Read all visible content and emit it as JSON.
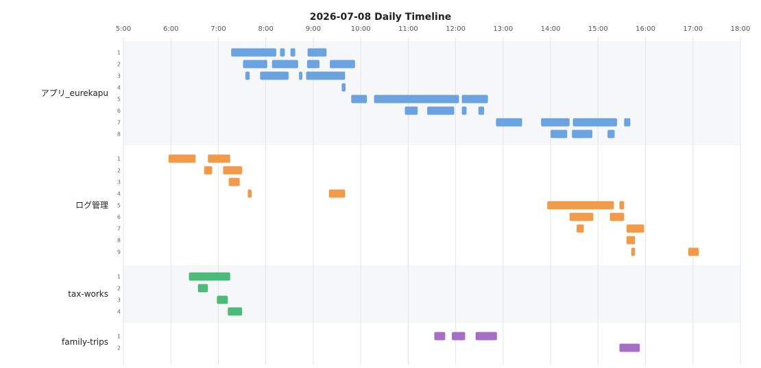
{
  "chart_data": {
    "type": "timeline",
    "title": "2026-07-08 Daily Timeline",
    "x_ticks": [
      "5:00",
      "6:00",
      "7:00",
      "8:00",
      "9:00",
      "10:00",
      "11:00",
      "12:00",
      "13:00",
      "14:00",
      "15:00",
      "16:00",
      "17:00",
      "18:00"
    ],
    "xlim": [
      5,
      18
    ],
    "groups": [
      {
        "name": "アプリ_eurekapu",
        "color": "#6aa3e0",
        "shaded": true,
        "lanes": [
          {
            "label": "1",
            "bars": [
              [
                7.27,
                8.22
              ],
              [
                8.3,
                8.4
              ],
              [
                8.52,
                8.62
              ],
              [
                8.88,
                9.28
              ]
            ]
          },
          {
            "label": "2",
            "bars": [
              [
                7.52,
                8.03
              ],
              [
                8.13,
                8.68
              ],
              [
                8.87,
                9.13
              ],
              [
                9.35,
                9.88
              ]
            ]
          },
          {
            "label": "3",
            "bars": [
              [
                7.57,
                7.66
              ],
              [
                7.88,
                8.48
              ],
              [
                8.7,
                8.77
              ],
              [
                8.85,
                9.67
              ]
            ]
          },
          {
            "label": "4",
            "bars": [
              [
                9.6,
                9.68
              ]
            ]
          },
          {
            "label": "5",
            "bars": [
              [
                9.8,
                10.13
              ],
              [
                10.28,
                12.07
              ],
              [
                12.13,
                12.68
              ]
            ]
          },
          {
            "label": "6",
            "bars": [
              [
                10.93,
                11.2
              ],
              [
                11.4,
                11.97
              ],
              [
                12.13,
                12.23
              ],
              [
                12.48,
                12.6
              ]
            ]
          },
          {
            "label": "7",
            "bars": [
              [
                12.85,
                13.4
              ],
              [
                13.8,
                14.4
              ],
              [
                14.47,
                15.4
              ],
              [
                15.55,
                15.68
              ]
            ]
          },
          {
            "label": "8",
            "bars": [
              [
                14,
                14.35
              ],
              [
                14.45,
                14.88
              ],
              [
                15.2,
                15.35
              ]
            ]
          }
        ]
      },
      {
        "name": "ログ管理",
        "color": "#f09a4a",
        "shaded": false,
        "lanes": [
          {
            "label": "1",
            "bars": [
              [
                5.95,
                6.52
              ],
              [
                6.78,
                7.25
              ]
            ]
          },
          {
            "label": "2",
            "bars": [
              [
                6.7,
                6.87
              ],
              [
                7.1,
                7.5
              ]
            ]
          },
          {
            "label": "3",
            "bars": [
              [
                7.22,
                7.45
              ]
            ]
          },
          {
            "label": "4",
            "bars": [
              [
                7.62,
                7.7
              ],
              [
                9.33,
                9.67
              ]
            ]
          },
          {
            "label": "5",
            "bars": [
              [
                13.93,
                15.33
              ],
              [
                15.45,
                15.55
              ]
            ]
          },
          {
            "label": "6",
            "bars": [
              [
                14.4,
                14.9
              ],
              [
                15.25,
                15.55
              ]
            ]
          },
          {
            "label": "7",
            "bars": [
              [
                14.55,
                14.7
              ],
              [
                15.6,
                15.97
              ]
            ]
          },
          {
            "label": "8",
            "bars": [
              [
                15.6,
                15.78
              ]
            ]
          },
          {
            "label": "9",
            "bars": [
              [
                15.7,
                15.78
              ],
              [
                16.9,
                17.12
              ]
            ]
          }
        ]
      },
      {
        "name": "tax-works",
        "color": "#4cbb7a",
        "shaded": true,
        "lanes": [
          {
            "label": "1",
            "bars": [
              [
                6.38,
                7.25
              ]
            ]
          },
          {
            "label": "2",
            "bars": [
              [
                6.57,
                6.78
              ]
            ]
          },
          {
            "label": "3",
            "bars": [
              [
                6.97,
                7.2
              ]
            ]
          },
          {
            "label": "4",
            "bars": [
              [
                7.2,
                7.5
              ]
            ]
          }
        ]
      },
      {
        "name": "family-trips",
        "color": "#a46fc4",
        "shaded": false,
        "lanes": [
          {
            "label": "1",
            "bars": [
              [
                11.55,
                11.78
              ],
              [
                11.92,
                12.2
              ],
              [
                12.42,
                12.87
              ]
            ]
          },
          {
            "label": "2",
            "bars": [
              [
                15.45,
                15.88
              ]
            ]
          }
        ]
      }
    ]
  }
}
